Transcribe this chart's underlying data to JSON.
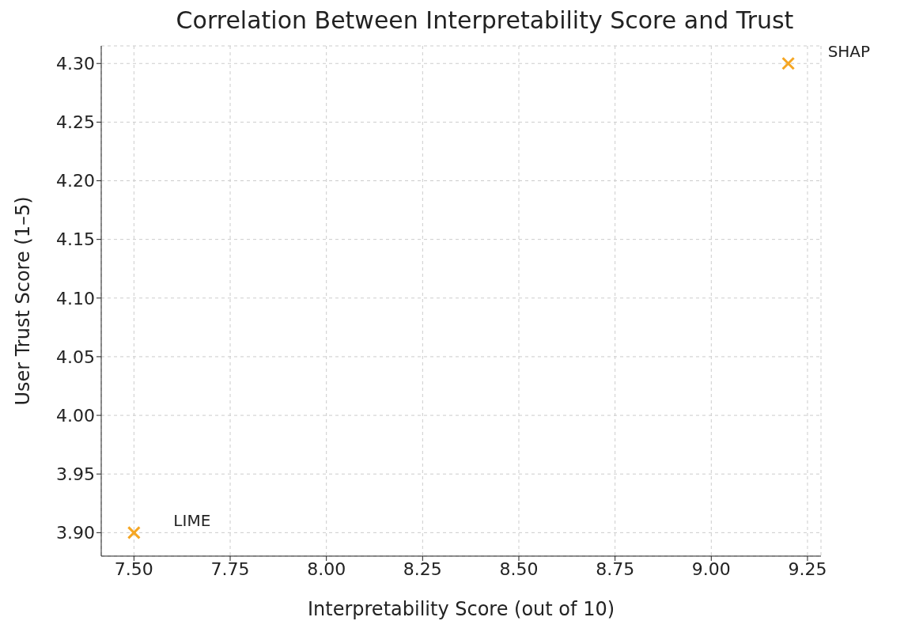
{
  "chart_data": {
    "type": "scatter",
    "title": "Correlation Between Interpretability Score and Trust",
    "xlabel": "Interpretability Score (out of 10)",
    "ylabel": "User Trust Score (1–5)",
    "x": [
      7.5,
      9.2
    ],
    "series": [
      {
        "color": "#f5a623",
        "values": [
          3.9,
          4.3
        ]
      }
    ],
    "annotations": [
      {
        "text": "LIME",
        "x": 7.5,
        "y": 3.9
      },
      {
        "text": "SHAP",
        "x": 9.2,
        "y": 4.3
      }
    ],
    "xlim": [
      7.415,
      9.285
    ],
    "xticks": [
      {
        "value": 7.5,
        "label": "7.50"
      },
      {
        "value": 7.75,
        "label": "7.75"
      },
      {
        "value": 8,
        "label": "8.00"
      },
      {
        "value": 8.25,
        "label": "8.25"
      },
      {
        "value": 8.5,
        "label": "8.50"
      },
      {
        "value": 8.75,
        "label": "8.75"
      },
      {
        "value": 9,
        "label": "9.00"
      },
      {
        "value": 9.25,
        "label": "9.25"
      }
    ],
    "ylim": [
      3.88,
      4.315
    ],
    "yticks": [
      {
        "value": 3.9,
        "label": "3.90"
      },
      {
        "value": 3.95,
        "label": "3.95"
      },
      {
        "value": 4,
        "label": "4.00"
      },
      {
        "value": 4.05,
        "label": "4.05"
      },
      {
        "value": 4.1,
        "label": "4.10"
      },
      {
        "value": 4.15,
        "label": "4.15"
      },
      {
        "value": 4.2,
        "label": "4.20"
      },
      {
        "value": 4.25,
        "label": "4.25"
      },
      {
        "value": 4.3,
        "label": "4.30"
      }
    ],
    "grid": true,
    "legend": false,
    "marker": "cross"
  }
}
